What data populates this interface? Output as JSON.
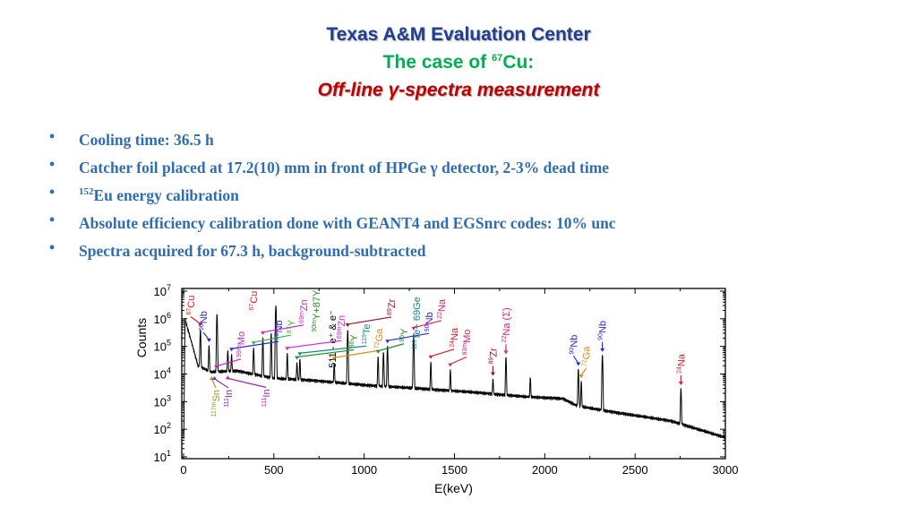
{
  "title": {
    "line1": "Texas A&M Evaluation Center",
    "line2_pre": "The case of ",
    "line2_sup": "67",
    "line2_post": "Cu:",
    "line3": "Off-line γ-spectra measurement"
  },
  "bullets": [
    {
      "sup": "",
      "text": "Cooling time: 36.5 h"
    },
    {
      "sup": "",
      "text": "Catcher foil placed at 17.2(10) mm in front of HPGe γ detector, 2-3% dead time"
    },
    {
      "sup": "152",
      "text": "Eu energy calibration"
    },
    {
      "sup": "",
      "text": "Absolute efficiency calibration done with GEANT4 and EGSnrc codes: 10% unc"
    },
    {
      "sup": "",
      "text": "Spectra acquired for 67.3 h, background-subtracted"
    }
  ],
  "chart_data": {
    "type": "line",
    "xlabel": "E(keV)",
    "ylabel": "Counts",
    "xlim": [
      0,
      3000
    ],
    "ylim": [
      10,
      10000000
    ],
    "yscale": "log",
    "xticks": [
      "0",
      "500",
      "1000",
      "1500",
      "2000",
      "2500",
      "3000"
    ],
    "yticks": [
      {
        "base": "10",
        "exp": "1"
      },
      {
        "base": "10",
        "exp": "2"
      },
      {
        "base": "10",
        "exp": "3"
      },
      {
        "base": "10",
        "exp": "4"
      },
      {
        "base": "10",
        "exp": "5"
      },
      {
        "base": "10",
        "exp": "6"
      },
      {
        "base": "10",
        "exp": "7"
      }
    ],
    "continuum": [
      [
        0,
        10
      ],
      [
        8,
        1000000
      ],
      [
        30,
        300000
      ],
      [
        80,
        20000
      ],
      [
        150,
        12000
      ],
      [
        300,
        13000
      ],
      [
        500,
        7000
      ],
      [
        700,
        6000
      ],
      [
        1000,
        4000
      ],
      [
        1300,
        3000
      ],
      [
        1600,
        2200
      ],
      [
        1900,
        1500
      ],
      [
        2100,
        1300
      ],
      [
        2180,
        700
      ],
      [
        2400,
        400
      ],
      [
        2700,
        200
      ],
      [
        3000,
        50
      ]
    ],
    "peaks": [
      [
        93,
        400000
      ],
      [
        141,
        100000
      ],
      [
        185,
        1500000
      ],
      [
        245,
        60000
      ],
      [
        266,
        40000
      ],
      [
        388,
        80000
      ],
      [
        439,
        200000
      ],
      [
        485,
        300000
      ],
      [
        511,
        3000000
      ],
      [
        574,
        50000
      ],
      [
        628,
        20000
      ],
      [
        644,
        30000
      ],
      [
        834,
        20000
      ],
      [
        909,
        400000
      ],
      [
        1077,
        40000
      ],
      [
        1107,
        60000
      ],
      [
        1129,
        100000
      ],
      [
        1274,
        300000
      ],
      [
        1369,
        25000
      ],
      [
        1477,
        12000
      ],
      [
        1713,
        5000
      ],
      [
        1785,
        40000
      ],
      [
        1920,
        6000
      ],
      [
        2186,
        15000
      ],
      [
        2202,
        5000
      ],
      [
        2319,
        50000
      ],
      [
        2754,
        3000
      ]
    ],
    "annotations": [
      {
        "e": 93,
        "mass": "67",
        "el": "Cu",
        "color": "#e8191e",
        "pos": "above"
      },
      {
        "e": 141,
        "mass": "90",
        "el": "Nb",
        "color": "#2a2ad8",
        "pos": "above"
      },
      {
        "e": 156,
        "mass": "117m",
        "el": "Sn",
        "color": "#9a9a20",
        "pos": "below"
      },
      {
        "e": 171,
        "mass": "111",
        "el": "In",
        "color": "#8a2aa8",
        "pos": "below"
      },
      {
        "e": 181,
        "mass": "99m",
        "el": "Mo",
        "color": "#d020c0",
        "pos": "above"
      },
      {
        "e": 185,
        "mass": "67",
        "el": "Cu",
        "color": "#e8191e",
        "pos": "above"
      },
      {
        "e": 245,
        "mass": "111",
        "el": "In",
        "color": "#b020b0",
        "pos": "below"
      },
      {
        "e": 266,
        "mass": "90",
        "el": "Nb",
        "color": "#2a2ad8",
        "pos": "above"
      },
      {
        "e": 388,
        "mass": "87",
        "el": "Y",
        "color": "#30c030",
        "pos": "above"
      },
      {
        "e": 439,
        "mass": "69m",
        "el": "Zn",
        "color": "#d020c0",
        "pos": "above"
      },
      {
        "e": 485,
        "mass": "90m",
        "el": "Y+87Y",
        "color": "#209020",
        "pos": "above"
      },
      {
        "e": 511,
        "mass": "",
        "el": "511 - e⁺ & e⁻",
        "color": "#000000",
        "pos": "above"
      },
      {
        "e": 574,
        "mass": "69m",
        "el": "Zn",
        "color": "#e020e0",
        "pos": "above"
      },
      {
        "e": 628,
        "mass": "86",
        "el": "Y",
        "color": "#209020",
        "pos": "above"
      },
      {
        "e": 644,
        "mass": "119",
        "el": "Te",
        "color": "#108a8a",
        "pos": "above"
      },
      {
        "e": 834,
        "mass": "72",
        "el": "Ga",
        "color": "#e08a10",
        "pos": "above"
      },
      {
        "e": 909,
        "mass": "89",
        "el": "Zr",
        "color": "#a01020",
        "pos": "above"
      },
      {
        "e": 1077,
        "mass": "86",
        "el": "Y",
        "color": "#209020",
        "pos": "above"
      },
      {
        "e": 1107,
        "mass": "119",
        "el": "Te+ 69Ge",
        "color": "#108a8a",
        "pos": "above"
      },
      {
        "e": 1129,
        "mass": "90",
        "el": "Nb",
        "color": "#2a2ad8",
        "pos": "above"
      },
      {
        "e": 1274,
        "mass": "22",
        "el": "Na",
        "color": "#e0206a",
        "pos": "above"
      },
      {
        "e": 1369,
        "mass": "24",
        "el": "Na",
        "color": "#e8191e",
        "pos": "above"
      },
      {
        "e": 1477,
        "mass": "93m",
        "el": "Mo",
        "color": "#e0206a",
        "pos": "above"
      },
      {
        "e": 1713,
        "mass": "89",
        "el": "Zr",
        "color": "#a01020",
        "pos": "above"
      },
      {
        "e": 1785,
        "mass": "22",
        "el": "Na (Σ)",
        "color": "#e0206a",
        "pos": "above"
      },
      {
        "e": 2186,
        "mass": "90",
        "el": "Nb",
        "color": "#2a2ad8",
        "pos": "above"
      },
      {
        "e": 2202,
        "mass": "72",
        "el": "Ga",
        "color": "#e08a10",
        "pos": "above"
      },
      {
        "e": 2319,
        "mass": "90",
        "el": "Nb",
        "color": "#2a2ad8",
        "pos": "above"
      },
      {
        "e": 2754,
        "mass": "24",
        "el": "Na",
        "color": "#e8191e",
        "pos": "above"
      }
    ]
  }
}
